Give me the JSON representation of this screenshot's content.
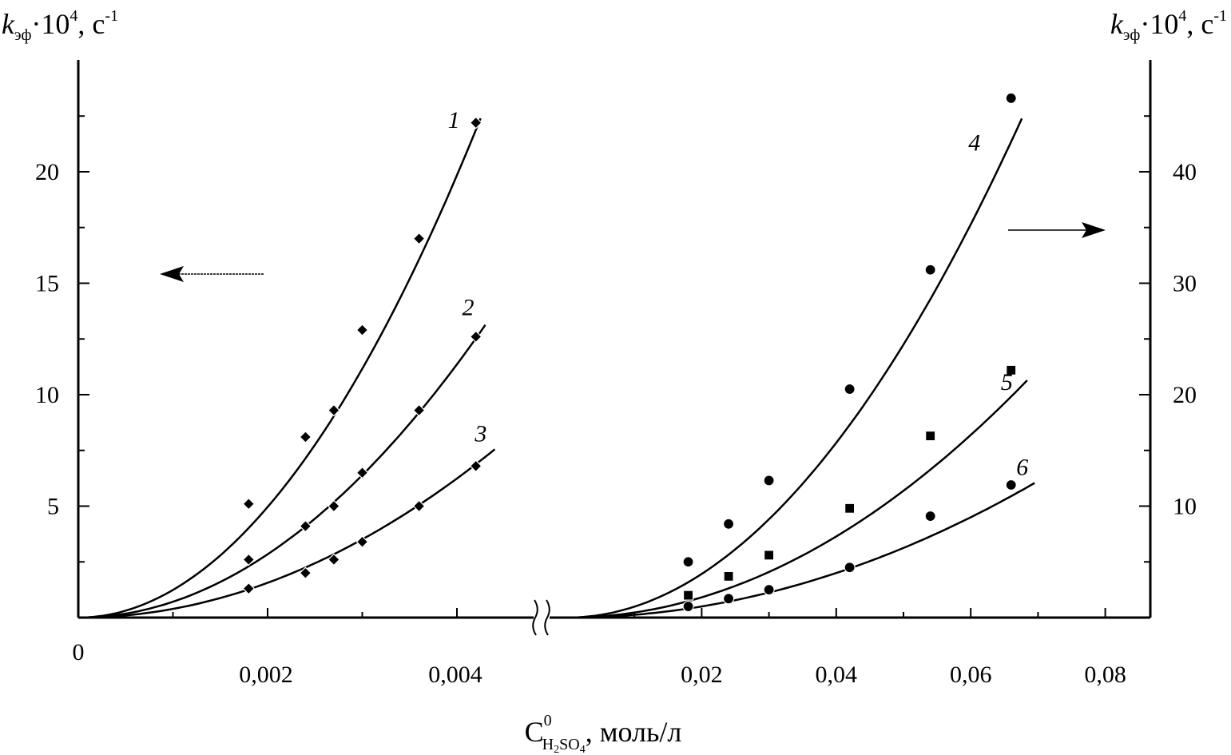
{
  "chart_data": {
    "type": "scatter",
    "title": "",
    "left_axis_label": {
      "symbol": "k",
      "sub": "эф",
      "mult": "·10",
      "sup": "4",
      "unit": ", с",
      "unit_sup": "-1"
    },
    "right_axis_label": {
      "symbol": "k",
      "sub": "эф",
      "mult": "·10",
      "sup": "4",
      "unit": ", с",
      "unit_sup": "-1"
    },
    "x_axis_label": {
      "main": "С",
      "sup": "0",
      "sub": "H",
      "sub2": "2",
      "sub3": "SO",
      "sub4": "4",
      "unit": ", моль/л"
    },
    "origin_label": "0",
    "left_yticks": [
      "5",
      "10",
      "15",
      "20"
    ],
    "right_yticks": [
      "10",
      "20",
      "30",
      "40"
    ],
    "left_xticks": [
      "0,002",
      "0,004"
    ],
    "right_xticks": [
      "0,02",
      "0,04",
      "0,06",
      "0,08"
    ],
    "left_ylim": [
      0,
      25
    ],
    "right_ylim": [
      0,
      50
    ],
    "left_xlim": [
      0,
      0.0048
    ],
    "right_xlim": [
      0,
      0.084
    ],
    "axis_break": true,
    "left_series": [
      {
        "name": "1",
        "x": [
          0.0018,
          0.0024,
          0.0027,
          0.003,
          0.0036,
          0.0042
        ],
        "y": [
          5.1,
          8.1,
          9.3,
          12.9,
          17.0,
          22.2
        ]
      },
      {
        "name": "2",
        "x": [
          0.0018,
          0.0024,
          0.0027,
          0.003,
          0.0036,
          0.0042
        ],
        "y": [
          2.6,
          4.1,
          5.0,
          6.5,
          9.3,
          12.6
        ]
      },
      {
        "name": "3",
        "x": [
          0.0018,
          0.0024,
          0.0027,
          0.003,
          0.0036,
          0.0042
        ],
        "y": [
          1.3,
          2.0,
          2.6,
          3.4,
          5.0,
          6.8
        ]
      }
    ],
    "right_series": [
      {
        "name": "4",
        "x": [
          0.018,
          0.024,
          0.03,
          0.042,
          0.054,
          0.066
        ],
        "y": [
          5.0,
          8.4,
          12.3,
          20.5,
          31.2,
          46.6
        ]
      },
      {
        "name": "5",
        "x": [
          0.018,
          0.024,
          0.03,
          0.042,
          0.054,
          0.066
        ],
        "y": [
          2.0,
          3.7,
          5.6,
          9.8,
          16.3,
          22.2
        ]
      },
      {
        "name": "6",
        "x": [
          0.018,
          0.024,
          0.03,
          0.042,
          0.054,
          0.066
        ],
        "y": [
          1.0,
          1.7,
          2.5,
          4.5,
          9.1,
          11.9
        ]
      }
    ],
    "left_fits": [
      {
        "name": "1",
        "coef": 1240000.0,
        "power": 2,
        "x_end": 0.00425
      },
      {
        "name": "2",
        "coef": 710000.0,
        "power": 2,
        "x_end": 0.0043
      },
      {
        "name": "3",
        "coef": 390000.0,
        "power": 2,
        "x_end": 0.0044
      }
    ],
    "right_fits": [
      {
        "name": "4",
        "coef": 9800,
        "power": 2,
        "x_end": 0.0676
      },
      {
        "name": "5",
        "coef": 4550,
        "power": 2,
        "x_end": 0.0684
      },
      {
        "name": "6",
        "coef": 2500,
        "power": 2,
        "x_end": 0.0695
      }
    ],
    "left_marker": "diamond",
    "right_markers": [
      "circle",
      "square",
      "circle"
    ],
    "left_arrow_direction": "left",
    "right_arrow_direction": "right"
  }
}
